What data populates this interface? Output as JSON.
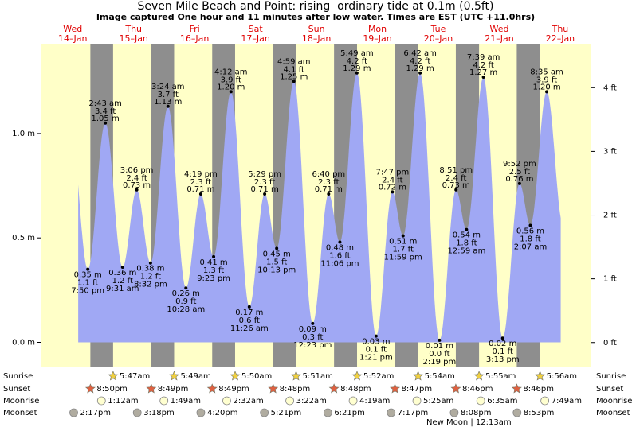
{
  "chart_data": {
    "type": "tide",
    "title": "Seven Mile Beach and Point: rising  ordinary tide at 0.1m (0.5ft)",
    "subtitle": "Image captured One hour and 11 minutes after low water. Times are EST (UTC +11.0hrs)",
    "days": [
      {
        "weekday": "Wed",
        "date": "14–Jan"
      },
      {
        "weekday": "Thu",
        "date": "15–Jan"
      },
      {
        "weekday": "Fri",
        "date": "16–Jan"
      },
      {
        "weekday": "Sat",
        "date": "17–Jan"
      },
      {
        "weekday": "Sun",
        "date": "18–Jan"
      },
      {
        "weekday": "Mon",
        "date": "19–Jan"
      },
      {
        "weekday": "Tue",
        "date": "20–Jan"
      },
      {
        "weekday": "Wed",
        "date": "21–Jan"
      },
      {
        "weekday": "Thu",
        "date": "22–Jan"
      }
    ],
    "extremes": {
      "times": [
        "7:50 pm",
        "2:43 am",
        "9:31 am",
        "3:06 pm",
        "8:32 pm",
        "3:24 am",
        "10:28 am",
        "4:19 pm",
        "9:23 pm",
        "4:12 am",
        "11:26 am",
        "5:29 pm",
        "10:13 pm",
        "4:59 am",
        "12:23 pm",
        "6:40 pm",
        "11:06 pm",
        "5:49 am",
        "1:21 pm",
        "7:47 pm",
        "11:59 pm",
        "6:42 am",
        "2:19 pm",
        "8:51 pm",
        "12:59 am",
        "7:39 am",
        "3:13 pm",
        "9:52 pm",
        "2:07 am",
        "8:35 am"
      ],
      "values": [
        0.35,
        1.05,
        0.36,
        0.73,
        0.38,
        1.13,
        0.26,
        0.71,
        0.41,
        1.2,
        0.17,
        0.71,
        0.45,
        1.25,
        0.09,
        0.71,
        0.48,
        1.29,
        0.03,
        0.72,
        0.51,
        1.29,
        0.01,
        0.73,
        0.54,
        1.27,
        0.02,
        0.76,
        0.56,
        1.2
      ],
      "value_labels": [
        "0.35 m",
        "1.05 m",
        "0.36 m",
        "0.73 m",
        "0.38 m",
        "1.13 m",
        "0.26 m",
        "0.71 m",
        "0.41 m",
        "1.20 m",
        "0.17 m",
        "0.71 m",
        "0.45 m",
        "1.25 m",
        "0.09 m",
        "0.71 m",
        "0.48 m",
        "1.29 m",
        "0.03 m",
        "0.72 m",
        "0.51 m",
        "1.29 m",
        "0.01 m",
        "0.73 m",
        "0.54 m",
        "1.27 m",
        "0.02 m",
        "0.76 m",
        "0.56 m",
        "1.20 m"
      ],
      "feet_labels": [
        "1.1 ft",
        "3.4 ft",
        "1.2 ft",
        "2.4 ft",
        "1.2 ft",
        "3.7 ft",
        "0.9 ft",
        "2.3 ft",
        "1.3 ft",
        "3.9 ft",
        "0.6 ft",
        "2.3 ft",
        "1.5 ft",
        "4.1 ft",
        "0.3 ft",
        "2.3 ft",
        "1.6 ft",
        "4.2 ft",
        "0.1 ft",
        "2.4 ft",
        "1.7 ft",
        "4.2 ft",
        "0.0 ft",
        "2.4 ft",
        "1.8 ft",
        "4.2 ft",
        "0.1 ft",
        "2.5 ft",
        "1.8 ft",
        "3.9 ft"
      ]
    },
    "color": "#a0a8f4",
    "day_color": "#ffffc8",
    "night_color": "#8e8e8e",
    "ylim": [
      -0.12,
      1.43
    ],
    "yticks": [
      {
        "value": 0,
        "label": "0.0 m"
      },
      {
        "value": 0.5,
        "label": "0.5 m"
      },
      {
        "value": 1,
        "label": "1.0 m"
      }
    ],
    "y2lim": [
      -0.39,
      4.69
    ],
    "y2ticks": [
      {
        "value": 0,
        "label": "0 ft"
      },
      {
        "value": 1,
        "label": "1 ft"
      },
      {
        "value": 2,
        "label": "2 ft"
      },
      {
        "value": 3,
        "label": "3 ft"
      },
      {
        "value": 4,
        "label": "4 ft"
      }
    ],
    "almanac": [
      {
        "label": "Sunrise",
        "times": [
          "5:47am",
          "5:49am",
          "5:50am",
          "5:51am",
          "5:52am",
          "5:54am",
          "5:55am",
          "5:56am"
        ]
      },
      {
        "label": "Sunset",
        "times": [
          "8:50pm",
          "8:49pm",
          "8:49pm",
          "8:48pm",
          "8:48pm",
          "8:47pm",
          "8:46pm",
          "8:46pm"
        ]
      },
      {
        "label": "Moonrise",
        "times": [
          "1:12am",
          "1:49am",
          "2:32am",
          "3:22am",
          "4:19am",
          "5:25am",
          "6:35am",
          "7:49am"
        ]
      },
      {
        "label": "Moonset",
        "times": [
          "2:17pm",
          "3:18pm",
          "4:20pm",
          "5:21pm",
          "6:21pm",
          "7:17pm",
          "8:08pm",
          "8:53pm"
        ]
      }
    ],
    "moon_phase": "New Moon | 12:13am"
  }
}
